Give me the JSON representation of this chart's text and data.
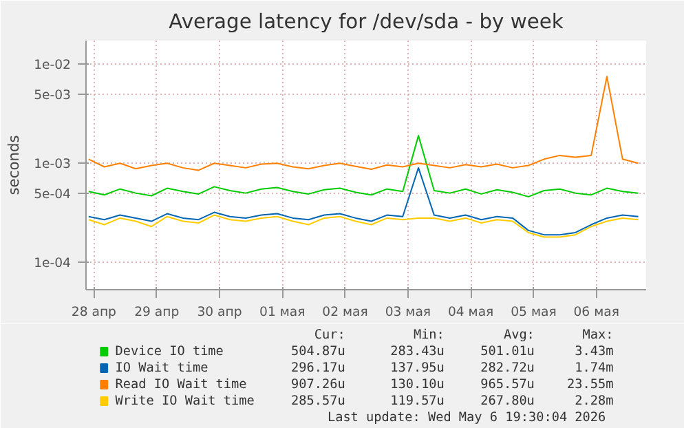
{
  "chart_data": {
    "type": "line",
    "title": "Average latency for /dev/sda - by week",
    "ylabel": "seconds",
    "log": true,
    "grid": true,
    "legend": "bottom",
    "x": [
      "2026-04-27T22:00",
      "2026-04-28T04:00",
      "2026-04-28T10:00",
      "2026-04-28T16:00",
      "2026-04-28T22:00",
      "2026-04-29T04:00",
      "2026-04-29T10:00",
      "2026-04-29T16:00",
      "2026-04-29T22:00",
      "2026-04-30T04:00",
      "2026-04-30T10:00",
      "2026-04-30T16:00",
      "2026-04-30T22:00",
      "2026-05-01T04:00",
      "2026-05-01T10:00",
      "2026-05-01T16:00",
      "2026-05-01T22:00",
      "2026-05-02T04:00",
      "2026-05-02T10:00",
      "2026-05-02T16:00",
      "2026-05-02T22:00",
      "2026-05-03T04:00",
      "2026-05-03T10:00",
      "2026-05-03T16:00",
      "2026-05-03T22:00",
      "2026-05-04T04:00",
      "2026-05-04T10:00",
      "2026-05-04T16:00",
      "2026-05-04T22:00",
      "2026-05-05T04:00",
      "2026-05-05T10:00",
      "2026-05-05T16:00",
      "2026-05-05T22:00",
      "2026-05-06T04:00",
      "2026-05-06T10:00",
      "2026-05-06T16:00"
    ],
    "series": [
      {
        "name": "Device IO time",
        "color": "#00cc00",
        "values": [
          0.00052,
          0.00048,
          0.00055,
          0.0005,
          0.00047,
          0.00056,
          0.00052,
          0.00049,
          0.00058,
          0.00053,
          0.0005,
          0.00055,
          0.00057,
          0.00052,
          0.00049,
          0.00054,
          0.00056,
          0.00051,
          0.00048,
          0.00055,
          0.00052,
          0.0019,
          0.00053,
          0.0005,
          0.00055,
          0.00049,
          0.00054,
          0.00051,
          0.00046,
          0.00053,
          0.00055,
          0.0005,
          0.00048,
          0.00056,
          0.00052,
          0.0005
        ]
      },
      {
        "name": "IO Wait time",
        "color": "#0066b3",
        "values": [
          0.00029,
          0.00027,
          0.0003,
          0.00028,
          0.00026,
          0.00031,
          0.00028,
          0.00027,
          0.00032,
          0.00029,
          0.00028,
          0.0003,
          0.00031,
          0.00028,
          0.00027,
          0.0003,
          0.00031,
          0.00028,
          0.00026,
          0.0003,
          0.00029,
          0.0009,
          0.0003,
          0.00028,
          0.0003,
          0.00027,
          0.00029,
          0.00028,
          0.00021,
          0.00019,
          0.00019,
          0.0002,
          0.00024,
          0.00028,
          0.0003,
          0.00029
        ]
      },
      {
        "name": "Read IO Wait time",
        "color": "#ff8000",
        "values": [
          0.0011,
          0.00092,
          0.001,
          0.00088,
          0.00095,
          0.001,
          0.0009,
          0.00085,
          0.001,
          0.00095,
          0.0009,
          0.00098,
          0.001,
          0.00092,
          0.00088,
          0.00095,
          0.001,
          0.00093,
          0.00087,
          0.00096,
          0.00092,
          0.001,
          0.00095,
          0.0009,
          0.00097,
          0.00092,
          0.00098,
          0.0009,
          0.00095,
          0.0011,
          0.0012,
          0.00115,
          0.0012,
          0.0075,
          0.0011,
          0.001
        ]
      },
      {
        "name": "Write IO Wait time",
        "color": "#ffcc00",
        "values": [
          0.00027,
          0.00024,
          0.00028,
          0.00026,
          0.00023,
          0.00029,
          0.00026,
          0.00025,
          0.0003,
          0.00027,
          0.00026,
          0.00028,
          0.00029,
          0.00026,
          0.00024,
          0.00028,
          0.00029,
          0.00026,
          0.00024,
          0.00028,
          0.00027,
          0.00028,
          0.00028,
          0.00026,
          0.00028,
          0.00025,
          0.00027,
          0.00026,
          0.0002,
          0.00018,
          0.00018,
          0.00019,
          0.00023,
          0.00026,
          0.00028,
          0.00027
        ]
      }
    ],
    "xlim": [
      "2026-04-27T21:00",
      "2026-05-06T19:00"
    ],
    "xticks": [
      {
        "value": "2026-04-28",
        "label": "28 апр"
      },
      {
        "value": "2026-04-29",
        "label": "29 апр"
      },
      {
        "value": "2026-04-30",
        "label": "30 апр"
      },
      {
        "value": "2026-05-01",
        "label": "01 мая"
      },
      {
        "value": "2026-05-02",
        "label": "02 мая"
      },
      {
        "value": "2026-05-03",
        "label": "03 мая"
      },
      {
        "value": "2026-05-04",
        "label": "04 мая"
      },
      {
        "value": "2026-05-05",
        "label": "05 мая"
      },
      {
        "value": "2026-05-06",
        "label": "06 мая"
      }
    ],
    "ylim": [
      5.3e-05,
      0.0173
    ],
    "yticks": [
      {
        "value": 0.0001,
        "label": "1e-04"
      },
      {
        "value": 0.0005,
        "label": "5e-04"
      },
      {
        "value": 0.001,
        "label": "1e-03"
      },
      {
        "value": 0.005,
        "label": "5e-03"
      },
      {
        "value": 0.01,
        "label": "1e-02"
      }
    ],
    "annotations": [
      "Cur:",
      "Min:",
      "Avg:",
      "Max:",
      "504.87u",
      "283.43u",
      "501.01u",
      "3.43m",
      "296.17u",
      "137.95u",
      "282.72u",
      "1.74m",
      "907.26u",
      "130.10u",
      "965.57u",
      "23.55m",
      "285.57u",
      "119.57u",
      "267.80u",
      "2.28m",
      "Last update: Wed May  6 19:30:04 2026"
    ]
  }
}
